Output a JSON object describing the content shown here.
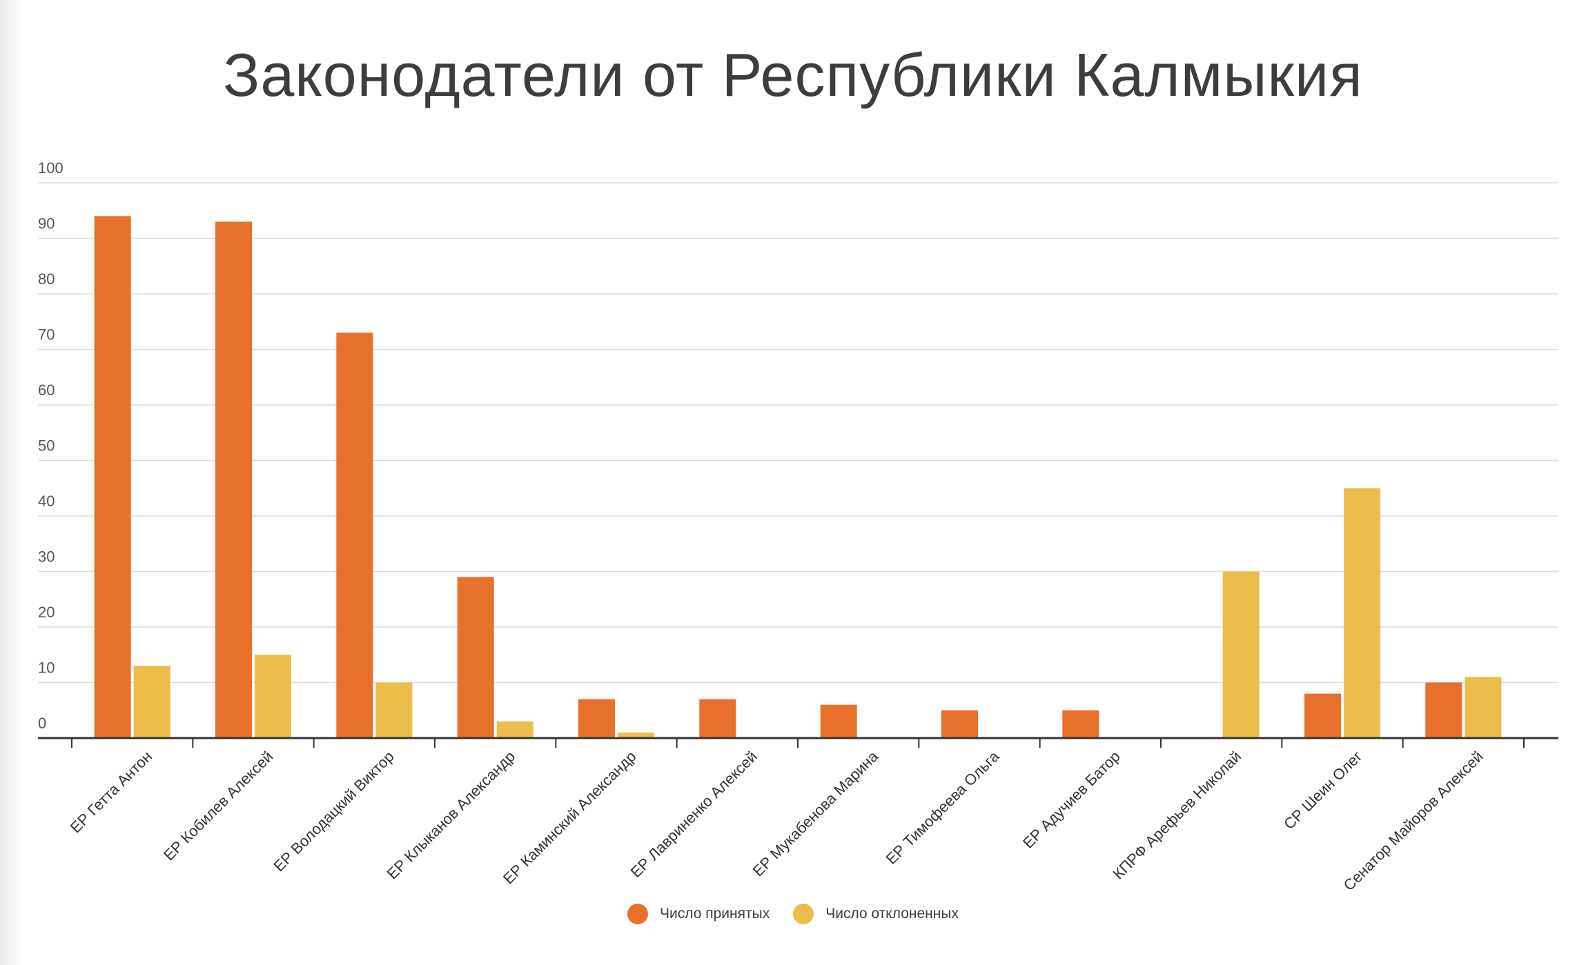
{
  "chart_data": {
    "type": "bar",
    "title": "Законодатели от Республики Калмыкия",
    "xlabel": "",
    "ylabel": "",
    "ylim": [
      0,
      100
    ],
    "yticks": [
      0,
      10,
      20,
      30,
      40,
      50,
      60,
      70,
      80,
      90,
      100
    ],
    "grid": true,
    "legend_position": "bottom",
    "categories": [
      "ЕР Гетта Антон",
      "ЕР Кобилев Алексей",
      "ЕР Володацкий Виктор",
      "ЕР Клыканов Александр",
      "ЕР Каминский Александр",
      "ЕР Лавриненко Алексей",
      "ЕР Мукабенова Марина",
      "ЕР Тимофеева Ольга",
      "ЕР Адучиев Батор",
      "КПРФ Арефьев Николай",
      "СР Шеин Олег",
      "Сенатор Майоров Алексей"
    ],
    "series": [
      {
        "name": "Число принятых",
        "color": "#e8702a",
        "values": [
          94,
          93,
          73,
          29,
          7,
          7,
          6,
          5,
          5,
          0,
          8,
          10
        ]
      },
      {
        "name": "Число отклоненных",
        "color": "#ecbd4a",
        "values": [
          13,
          15,
          10,
          3,
          1,
          0,
          0,
          0,
          0,
          30,
          45,
          11
        ]
      }
    ]
  }
}
